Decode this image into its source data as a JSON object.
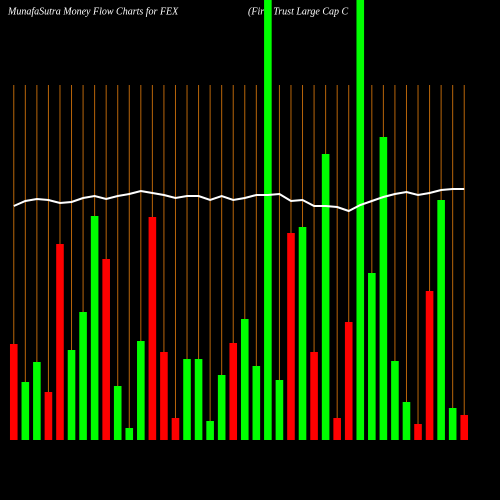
{
  "chart_data": {
    "type": "bar",
    "title": "MunafaSutra  Money Flow  Charts for FEX",
    "subtitle": "(First Trust Large  Cap C",
    "categories": [
      null,
      null,
      null,
      null,
      null,
      null,
      null,
      null,
      null,
      null,
      null,
      null,
      null,
      null,
      null,
      null,
      null,
      null,
      null,
      null,
      null,
      null,
      null,
      null,
      null,
      null,
      null,
      null,
      null,
      null,
      null,
      null,
      null,
      null,
      null,
      null,
      null,
      null,
      null,
      null
    ],
    "ylim": [
      0,
      440
    ],
    "grid": true,
    "grid_color": "#b8650a",
    "series": [
      {
        "values": [
          96,
          58,
          78,
          48,
          196,
          90,
          128,
          224,
          181,
          54,
          12,
          99,
          223,
          88,
          22,
          81,
          81,
          19,
          65,
          97,
          121,
          74,
          440,
          60,
          207,
          213,
          88,
          286,
          22,
          118,
          440,
          167,
          303,
          79,
          38,
          16,
          149,
          240,
          32,
          25
        ],
        "colors": [
          "#ff0000",
          "#00ff00",
          "#00ff00",
          "#ff0000",
          "#ff0000",
          "#00ff00",
          "#00ff00",
          "#00ff00",
          "#ff0000",
          "#00ff00",
          "#00ff00",
          "#00ff00",
          "#ff0000",
          "#ff0000",
          "#ff0000",
          "#00ff00",
          "#00ff00",
          "#00ff00",
          "#00ff00",
          "#ff0000",
          "#00ff00",
          "#00ff00",
          "#00ff00",
          "#00ff00",
          "#ff0000",
          "#00ff00",
          "#ff0000",
          "#00ff00",
          "#ff0000",
          "#ff0000",
          "#00ff00",
          "#00ff00",
          "#00ff00",
          "#00ff00",
          "#00ff00",
          "#ff0000",
          "#ff0000",
          "#00ff00",
          "#00ff00",
          "#ff0000"
        ]
      },
      {
        "type": "line",
        "color": "#ffffff",
        "values": [
          234,
          239,
          241,
          240,
          237,
          238,
          242,
          244,
          241,
          244,
          246,
          249,
          247,
          245,
          242,
          244,
          244,
          240,
          244,
          240,
          242,
          245,
          245,
          246,
          239,
          240,
          234,
          234,
          233,
          229,
          235,
          239,
          243,
          246,
          248,
          245,
          247,
          250,
          251,
          251
        ]
      }
    ]
  }
}
